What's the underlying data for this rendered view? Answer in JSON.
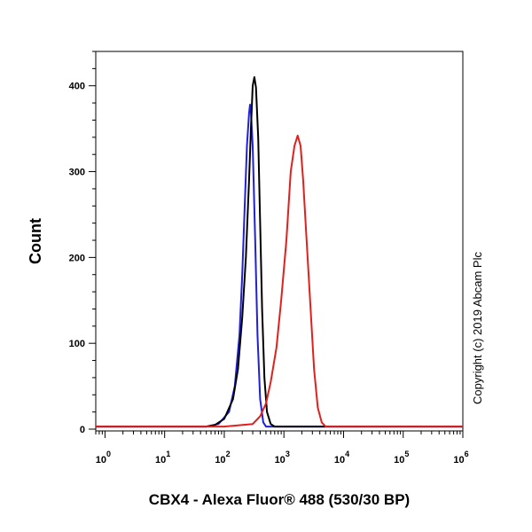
{
  "chart_data": {
    "type": "line",
    "xlabel": "CBX4 - Alexa Fluor® 488 (530/30 BP)",
    "ylabel": "Count",
    "x_scale": "log",
    "xlim": [
      0.7,
      1000000
    ],
    "ylim": [
      0,
      440
    ],
    "x_ticks": [
      {
        "value": 1,
        "base": "10",
        "exp": "0"
      },
      {
        "value": 10,
        "base": "10",
        "exp": "1"
      },
      {
        "value": 100,
        "base": "10",
        "exp": "2"
      },
      {
        "value": 1000,
        "base": "10",
        "exp": "3"
      },
      {
        "value": 10000,
        "base": "10",
        "exp": "4"
      },
      {
        "value": 100000,
        "base": "10",
        "exp": "5"
      },
      {
        "value": 1000000,
        "base": "10",
        "exp": "6"
      }
    ],
    "y_ticks": [
      "0",
      "100",
      "200",
      "300",
      "400"
    ],
    "grid": false,
    "legend": "none",
    "series": [
      {
        "color": "#1f1fdc",
        "points": [
          [
            0.7,
            3
          ],
          [
            1,
            3
          ],
          [
            10,
            3
          ],
          [
            50,
            3
          ],
          [
            80,
            6
          ],
          [
            120,
            20
          ],
          [
            150,
            50
          ],
          [
            180,
            110
          ],
          [
            200,
            180
          ],
          [
            220,
            260
          ],
          [
            240,
            330
          ],
          [
            260,
            368
          ],
          [
            270,
            378
          ],
          [
            280,
            370
          ],
          [
            300,
            330
          ],
          [
            330,
            220
          ],
          [
            360,
            110
          ],
          [
            400,
            35
          ],
          [
            450,
            8
          ],
          [
            500,
            3
          ],
          [
            1000000,
            3
          ]
        ]
      },
      {
        "color": "#000000",
        "points": [
          [
            0.7,
            3
          ],
          [
            1,
            3
          ],
          [
            10,
            3
          ],
          [
            50,
            3
          ],
          [
            70,
            5
          ],
          [
            100,
            12
          ],
          [
            140,
            35
          ],
          [
            170,
            70
          ],
          [
            200,
            130
          ],
          [
            230,
            200
          ],
          [
            260,
            290
          ],
          [
            280,
            350
          ],
          [
            300,
            400
          ],
          [
            320,
            410
          ],
          [
            340,
            398
          ],
          [
            370,
            340
          ],
          [
            400,
            240
          ],
          [
            430,
            140
          ],
          [
            470,
            60
          ],
          [
            520,
            20
          ],
          [
            600,
            6
          ],
          [
            700,
            3
          ],
          [
            1000000,
            3
          ]
        ]
      },
      {
        "color": "#e0201c",
        "points": [
          [
            0.7,
            3
          ],
          [
            1,
            3
          ],
          [
            100,
            3
          ],
          [
            300,
            6
          ],
          [
            400,
            15
          ],
          [
            500,
            30
          ],
          [
            600,
            55
          ],
          [
            750,
            95
          ],
          [
            900,
            150
          ],
          [
            1100,
            220
          ],
          [
            1300,
            300
          ],
          [
            1500,
            330
          ],
          [
            1700,
            342
          ],
          [
            1900,
            330
          ],
          [
            2100,
            290
          ],
          [
            2400,
            220
          ],
          [
            2800,
            140
          ],
          [
            3200,
            70
          ],
          [
            3700,
            25
          ],
          [
            4300,
            8
          ],
          [
            5000,
            3
          ],
          [
            1000000,
            3
          ]
        ]
      }
    ]
  },
  "copyright": "Copyright (c) 2019 Abcam Plc"
}
